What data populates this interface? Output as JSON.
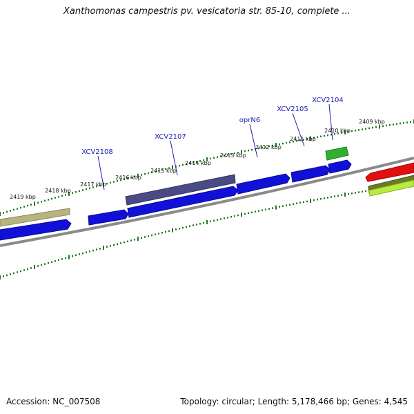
{
  "title": "Xanthomonas campestris pv. vesicatoria str. 85-10, complete ...",
  "accession": "Accession: NC_007508",
  "summary": "Topology: circular; Length: 5,178,466 bp; Genes: 4,545",
  "colors": {
    "backbone": "#8a8a8a",
    "ticks": "#1f7a1f",
    "gene_blue": "#1010d8",
    "gene_purple": "#4a4a85",
    "gene_olive": "#b8b480",
    "gene_green": "#30b030",
    "gene_red": "#e01010",
    "gene_darkolive": "#6b7a25",
    "gene_lime": "#b8ec40",
    "label_line": "#1a1ab0"
  },
  "tick_labels": [
    "2419 kbp",
    "2418 kbp",
    "2417 kbp",
    "2416 kbp",
    "2415 kbp",
    "2414 kbp",
    "2413 kbp",
    "2412 kbp",
    "2411 kbp",
    "2410 kbp",
    "2409 kbp"
  ],
  "gene_labels": [
    "XCV2108",
    "XCV2107",
    "oprN6",
    "XCV2105",
    "XCV2104"
  ]
}
